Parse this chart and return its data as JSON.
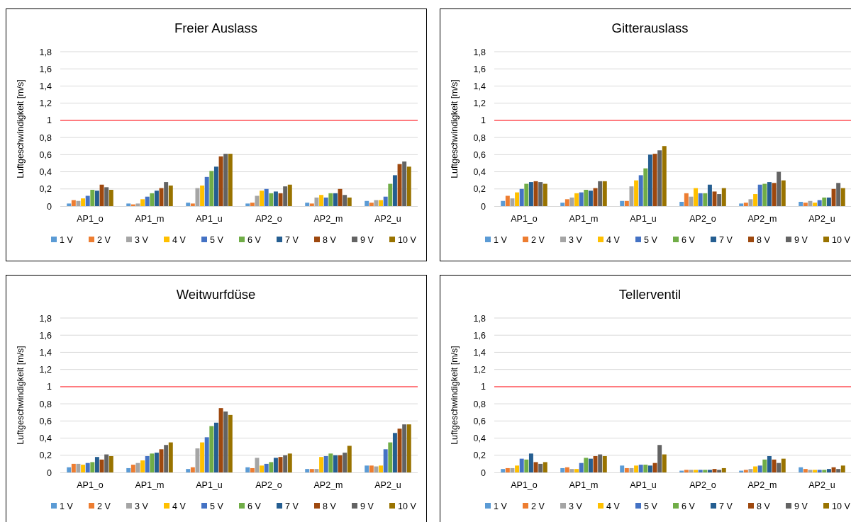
{
  "chart_data": [
    {
      "type": "bar",
      "title": "Freier Auslass",
      "ylabel": "Luftgeschwindigkeit [m/s]",
      "categories": [
        "AP1_o",
        "AP1_m",
        "AP1_u",
        "AP2_o",
        "AP2_m",
        "AP2_u"
      ],
      "ylim": [
        0,
        1.8
      ],
      "yticks": [
        {
          "value": 0,
          "label": "0"
        },
        {
          "value": 0.2,
          "label": "0,2"
        },
        {
          "value": 0.4,
          "label": "0,4"
        },
        {
          "value": 0.6,
          "label": "0,6"
        },
        {
          "value": 0.8,
          "label": "0,8"
        },
        {
          "value": 1,
          "label": "1"
        },
        {
          "value": 1.2,
          "label": "1,2"
        },
        {
          "value": 1.4,
          "label": "1,4"
        },
        {
          "value": 1.6,
          "label": "1,6"
        },
        {
          "value": 1.8,
          "label": "1,8"
        }
      ],
      "grid": "y",
      "legend": "bottom",
      "ref_lines": [
        {
          "axis": "y",
          "value": 1,
          "color": "#ff7c80"
        }
      ],
      "series": [
        {
          "name": "1 V",
          "color": "#5b9bd5",
          "values": [
            0.03,
            0.03,
            0.04,
            0.03,
            0.04,
            0.06
          ]
        },
        {
          "name": "2 V",
          "color": "#ed7d31",
          "values": [
            0.07,
            0.02,
            0.03,
            0.04,
            0.03,
            0.04
          ]
        },
        {
          "name": "3 V",
          "color": "#a5a5a5",
          "values": [
            0.06,
            0.03,
            0.21,
            0.12,
            0.1,
            0.07
          ]
        },
        {
          "name": "4 V",
          "color": "#ffc000",
          "values": [
            0.09,
            0.08,
            0.24,
            0.18,
            0.13,
            0.07
          ]
        },
        {
          "name": "5 V",
          "color": "#4472c4",
          "values": [
            0.12,
            0.11,
            0.34,
            0.2,
            0.1,
            0.11
          ]
        },
        {
          "name": "6 V",
          "color": "#70ad47",
          "values": [
            0.19,
            0.15,
            0.41,
            0.15,
            0.15,
            0.26
          ]
        },
        {
          "name": "7 V",
          "color": "#255e91",
          "values": [
            0.18,
            0.18,
            0.46,
            0.17,
            0.15,
            0.36
          ]
        },
        {
          "name": "8 V",
          "color": "#9e480e",
          "values": [
            0.25,
            0.21,
            0.58,
            0.15,
            0.2,
            0.49
          ]
        },
        {
          "name": "9 V",
          "color": "#636363",
          "values": [
            0.22,
            0.28,
            0.61,
            0.23,
            0.13,
            0.52
          ]
        },
        {
          "name": "10 V",
          "color": "#997300",
          "values": [
            0.19,
            0.24,
            0.61,
            0.25,
            0.1,
            0.46
          ]
        }
      ]
    },
    {
      "type": "bar",
      "title": "Gitterauslass",
      "ylabel": "Luftgeschwindigkeit [m/s]",
      "categories": [
        "AP1_o",
        "AP1_m",
        "AP1_u",
        "AP2_o",
        "AP2_m",
        "AP2_u"
      ],
      "ylim": [
        0,
        1.8
      ],
      "yticks": [
        {
          "value": 0,
          "label": "0"
        },
        {
          "value": 0.2,
          "label": "0,2"
        },
        {
          "value": 0.4,
          "label": "0,4"
        },
        {
          "value": 0.6,
          "label": "0,6"
        },
        {
          "value": 0.8,
          "label": "0,8"
        },
        {
          "value": 1,
          "label": "1"
        },
        {
          "value": 1.2,
          "label": "1,2"
        },
        {
          "value": 1.4,
          "label": "1,4"
        },
        {
          "value": 1.6,
          "label": "1,6"
        },
        {
          "value": 1.8,
          "label": "1,8"
        }
      ],
      "grid": "y",
      "legend": "bottom",
      "ref_lines": [
        {
          "axis": "y",
          "value": 1,
          "color": "#ff7c80"
        }
      ],
      "series": [
        {
          "name": "1 V",
          "color": "#5b9bd5",
          "values": [
            0.06,
            0.04,
            0.06,
            0.05,
            0.03,
            0.05
          ]
        },
        {
          "name": "2 V",
          "color": "#ed7d31",
          "values": [
            0.12,
            0.08,
            0.06,
            0.15,
            0.04,
            0.04
          ]
        },
        {
          "name": "3 V",
          "color": "#a5a5a5",
          "values": [
            0.09,
            0.1,
            0.23,
            0.11,
            0.08,
            0.06
          ]
        },
        {
          "name": "4 V",
          "color": "#ffc000",
          "values": [
            0.16,
            0.15,
            0.3,
            0.21,
            0.14,
            0.04
          ]
        },
        {
          "name": "5 V",
          "color": "#4472c4",
          "values": [
            0.2,
            0.16,
            0.36,
            0.15,
            0.25,
            0.07
          ]
        },
        {
          "name": "6 V",
          "color": "#70ad47",
          "values": [
            0.26,
            0.19,
            0.44,
            0.15,
            0.26,
            0.1
          ]
        },
        {
          "name": "7 V",
          "color": "#255e91",
          "values": [
            0.28,
            0.18,
            0.6,
            0.25,
            0.28,
            0.1
          ]
        },
        {
          "name": "8 V",
          "color": "#9e480e",
          "values": [
            0.29,
            0.21,
            0.61,
            0.17,
            0.27,
            0.2
          ]
        },
        {
          "name": "9 V",
          "color": "#636363",
          "values": [
            0.28,
            0.29,
            0.65,
            0.14,
            0.4,
            0.27
          ]
        },
        {
          "name": "10 V",
          "color": "#997300",
          "values": [
            0.26,
            0.29,
            0.7,
            0.21,
            0.3,
            0.21
          ]
        }
      ]
    },
    {
      "type": "bar",
      "title": "Weitwurfdüse",
      "ylabel": "Luftgeschwindigkeit [m/s]",
      "categories": [
        "AP1_o",
        "AP1_m",
        "AP1_u",
        "AP2_o",
        "AP2_m",
        "AP2_u"
      ],
      "ylim": [
        0,
        1.8
      ],
      "yticks": [
        {
          "value": 0,
          "label": "0"
        },
        {
          "value": 0.2,
          "label": "0,2"
        },
        {
          "value": 0.4,
          "label": "0,4"
        },
        {
          "value": 0.6,
          "label": "0,6"
        },
        {
          "value": 0.8,
          "label": "0,8"
        },
        {
          "value": 1,
          "label": "1"
        },
        {
          "value": 1.2,
          "label": "1,2"
        },
        {
          "value": 1.4,
          "label": "1,4"
        },
        {
          "value": 1.6,
          "label": "1,6"
        },
        {
          "value": 1.8,
          "label": "1,8"
        }
      ],
      "grid": "y",
      "legend": "bottom",
      "ref_lines": [
        {
          "axis": "y",
          "value": 1,
          "color": "#ff7c80"
        }
      ],
      "series": [
        {
          "name": "1 V",
          "color": "#5b9bd5",
          "values": [
            0.06,
            0.05,
            0.04,
            0.06,
            0.04,
            0.08
          ]
        },
        {
          "name": "2 V",
          "color": "#ed7d31",
          "values": [
            0.1,
            0.09,
            0.06,
            0.05,
            0.04,
            0.08
          ]
        },
        {
          "name": "3 V",
          "color": "#a5a5a5",
          "values": [
            0.1,
            0.11,
            0.28,
            0.17,
            0.04,
            0.07
          ]
        },
        {
          "name": "4 V",
          "color": "#ffc000",
          "values": [
            0.09,
            0.14,
            0.35,
            0.08,
            0.18,
            0.08
          ]
        },
        {
          "name": "5 V",
          "color": "#4472c4",
          "values": [
            0.11,
            0.19,
            0.41,
            0.1,
            0.19,
            0.27
          ]
        },
        {
          "name": "6 V",
          "color": "#70ad47",
          "values": [
            0.12,
            0.22,
            0.54,
            0.12,
            0.22,
            0.35
          ]
        },
        {
          "name": "7 V",
          "color": "#255e91",
          "values": [
            0.18,
            0.23,
            0.58,
            0.17,
            0.2,
            0.46
          ]
        },
        {
          "name": "8 V",
          "color": "#9e480e",
          "values": [
            0.15,
            0.27,
            0.75,
            0.18,
            0.2,
            0.51
          ]
        },
        {
          "name": "9 V",
          "color": "#636363",
          "values": [
            0.21,
            0.32,
            0.71,
            0.2,
            0.23,
            0.56
          ]
        },
        {
          "name": "10 V",
          "color": "#997300",
          "values": [
            0.19,
            0.35,
            0.67,
            0.22,
            0.31,
            0.56
          ]
        }
      ]
    },
    {
      "type": "bar",
      "title": "Tellerventil",
      "ylabel": "Luftgeschwindigkeit [m/s]",
      "categories": [
        "AP1_o",
        "AP1_m",
        "AP1_u",
        "AP2_o",
        "AP2_m",
        "AP2_u"
      ],
      "ylim": [
        0,
        1.8
      ],
      "yticks": [
        {
          "value": 0,
          "label": "0"
        },
        {
          "value": 0.2,
          "label": "0,2"
        },
        {
          "value": 0.4,
          "label": "0,4"
        },
        {
          "value": 0.6,
          "label": "0,6"
        },
        {
          "value": 0.8,
          "label": "0,8"
        },
        {
          "value": 1,
          "label": "1"
        },
        {
          "value": 1.2,
          "label": "1,2"
        },
        {
          "value": 1.4,
          "label": "1,4"
        },
        {
          "value": 1.6,
          "label": "1,6"
        },
        {
          "value": 1.8,
          "label": "1,8"
        }
      ],
      "grid": "y",
      "legend": "bottom",
      "ref_lines": [
        {
          "axis": "y",
          "value": 1,
          "color": "#ff7c80"
        }
      ],
      "series": [
        {
          "name": "1 V",
          "color": "#5b9bd5",
          "values": [
            0.04,
            0.05,
            0.08,
            0.02,
            0.02,
            0.06
          ]
        },
        {
          "name": "2 V",
          "color": "#ed7d31",
          "values": [
            0.05,
            0.06,
            0.05,
            0.03,
            0.03,
            0.04
          ]
        },
        {
          "name": "3 V",
          "color": "#a5a5a5",
          "values": [
            0.05,
            0.04,
            0.05,
            0.03,
            0.04,
            0.03
          ]
        },
        {
          "name": "4 V",
          "color": "#ffc000",
          "values": [
            0.08,
            0.04,
            0.08,
            0.03,
            0.07,
            0.03
          ]
        },
        {
          "name": "5 V",
          "color": "#4472c4",
          "values": [
            0.16,
            0.11,
            0.09,
            0.03,
            0.08,
            0.03
          ]
        },
        {
          "name": "6 V",
          "color": "#70ad47",
          "values": [
            0.15,
            0.17,
            0.09,
            0.03,
            0.15,
            0.03
          ]
        },
        {
          "name": "7 V",
          "color": "#255e91",
          "values": [
            0.22,
            0.16,
            0.08,
            0.03,
            0.19,
            0.04
          ]
        },
        {
          "name": "8 V",
          "color": "#9e480e",
          "values": [
            0.12,
            0.19,
            0.11,
            0.04,
            0.15,
            0.06
          ]
        },
        {
          "name": "9 V",
          "color": "#636363",
          "values": [
            0.1,
            0.21,
            0.32,
            0.03,
            0.11,
            0.04
          ]
        },
        {
          "name": "10 V",
          "color": "#997300",
          "values": [
            0.12,
            0.19,
            0.21,
            0.05,
            0.16,
            0.08
          ]
        }
      ]
    }
  ]
}
